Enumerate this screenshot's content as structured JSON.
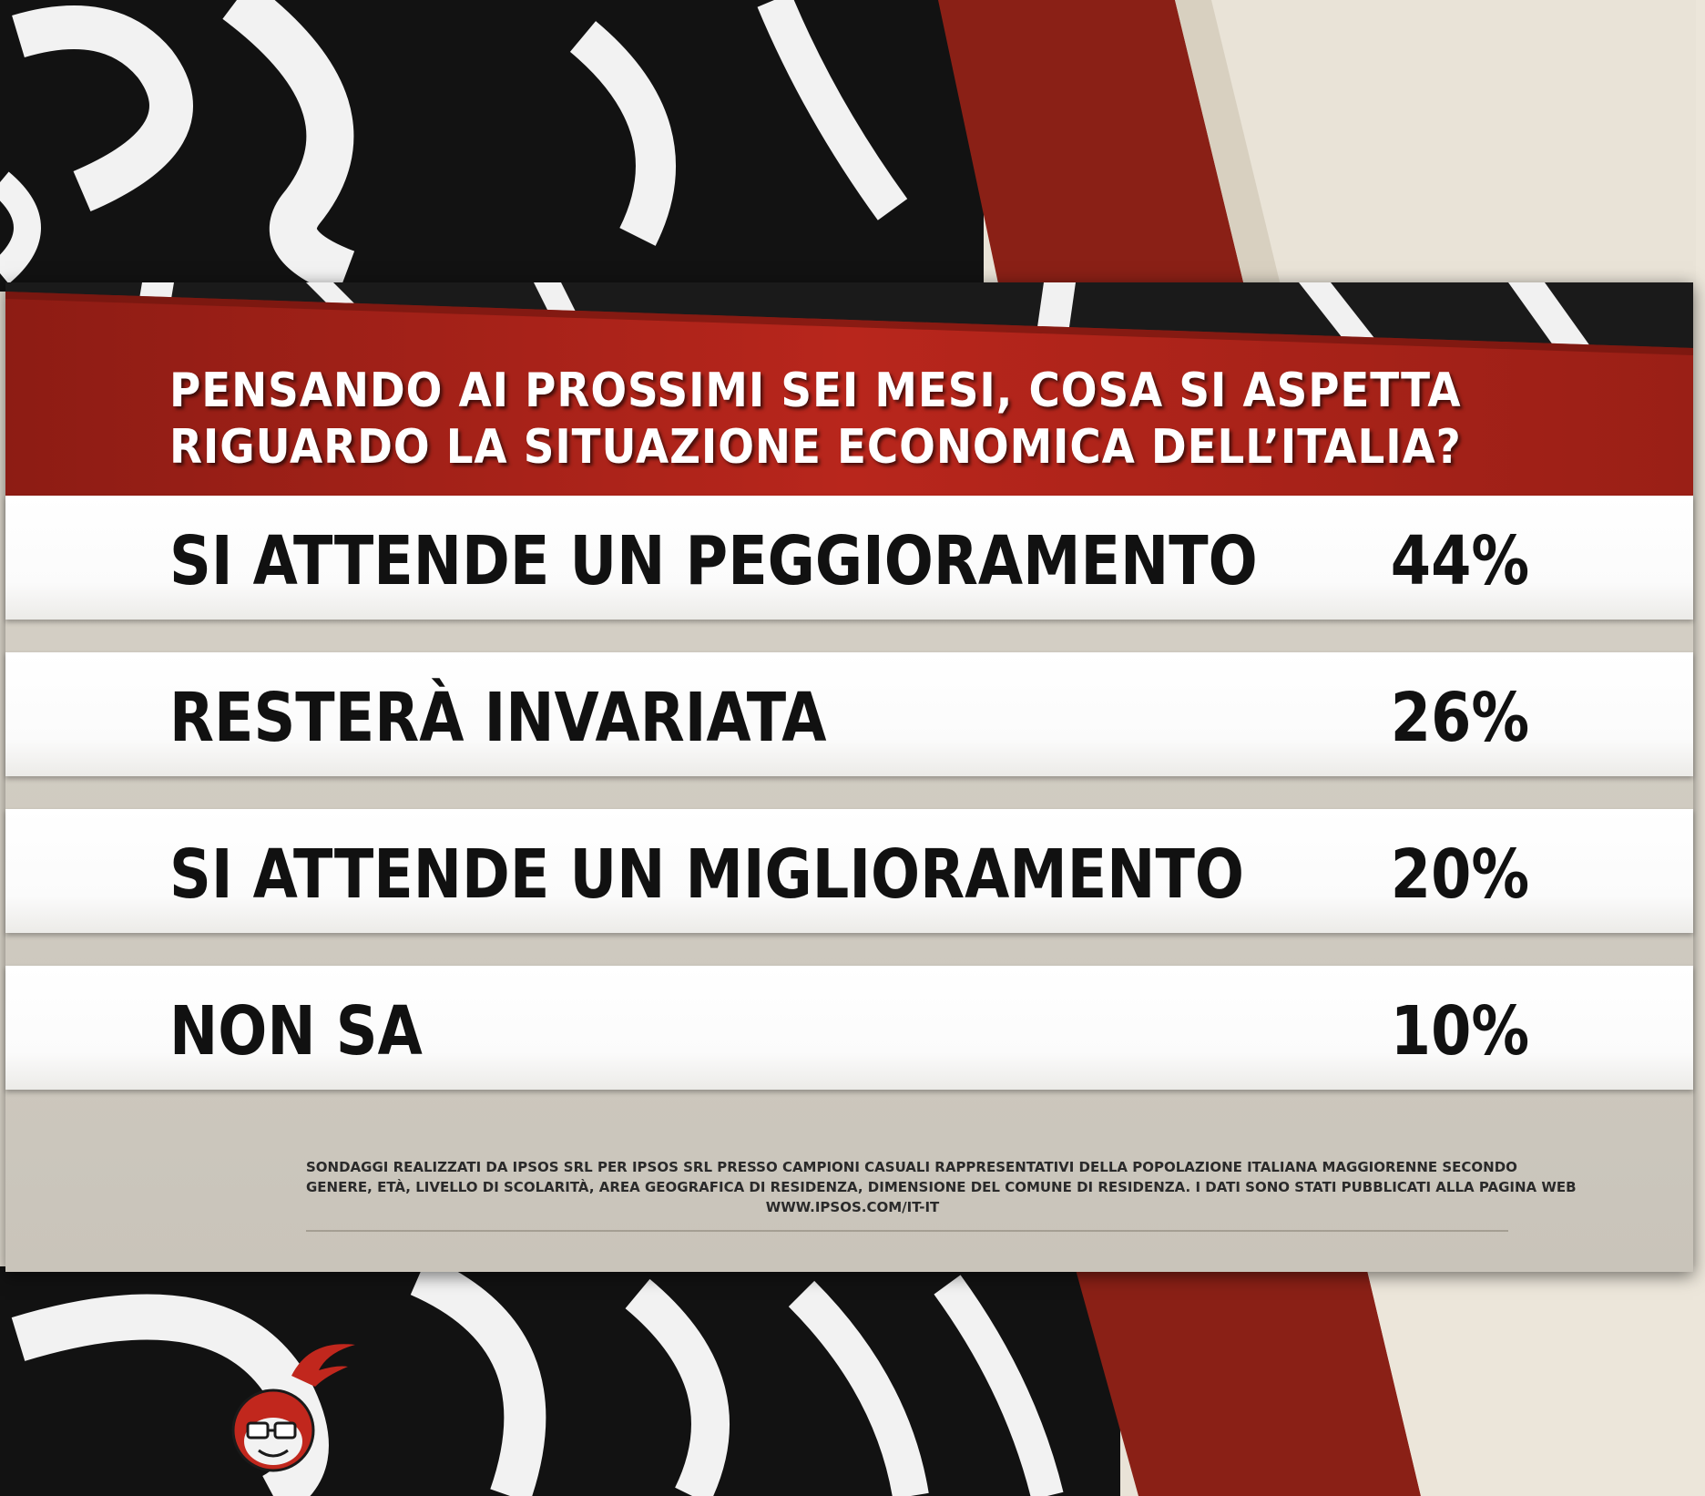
{
  "question": {
    "line1": "PENSANDO AI PROSSIMI SEI MESI, COSA SI ASPETTA",
    "line2": "RIGUARDO LA SITUAZIONE ECONOMICA DELL’ITALIA?"
  },
  "chart_data": {
    "type": "table",
    "title": "PENSANDO AI PROSSIMI SEI MESI, COSA SI ASPETTA RIGUARDO LA SITUAZIONE ECONOMICA DELL’ITALIA?",
    "rows": [
      {
        "label": "SI ATTENDE UN PEGGIORAMENTO",
        "value": 44,
        "display": "44%"
      },
      {
        "label": "RESTERÀ INVARIATA",
        "value": 26,
        "display": "26%"
      },
      {
        "label": "SI ATTENDE UN MIGLIORAMENTO",
        "value": 20,
        "display": "20%"
      },
      {
        "label": "NON SA",
        "value": 10,
        "display": "10%"
      }
    ]
  },
  "footnote": {
    "line1": "SONDAGGI REALIZZATI DA IPSOS SRL PER IPSOS SRL PRESSO CAMPIONI CASUALI RAPPRESENTATIVI DELLA POPOLAZIONE ITALIANA MAGGIORENNE SECONDO",
    "line2": "GENERE, ETÀ, LIVELLO DI SCOLARITÀ, AREA GEOGRAFICA DI RESIDENZA, DIMENSIONE DEL COMUNE DI RESIDENZA. I DATI SONO STATI PUBBLICATI ALLA PAGINA WEB",
    "line3": "WWW.IPSOS.COM/IT-IT"
  },
  "colors": {
    "header_red": "#a3241b",
    "accent_red": "#c1271d",
    "background_dark": "#141414",
    "row_white": "#ffffff",
    "panel_gray": "#d3cec4"
  }
}
